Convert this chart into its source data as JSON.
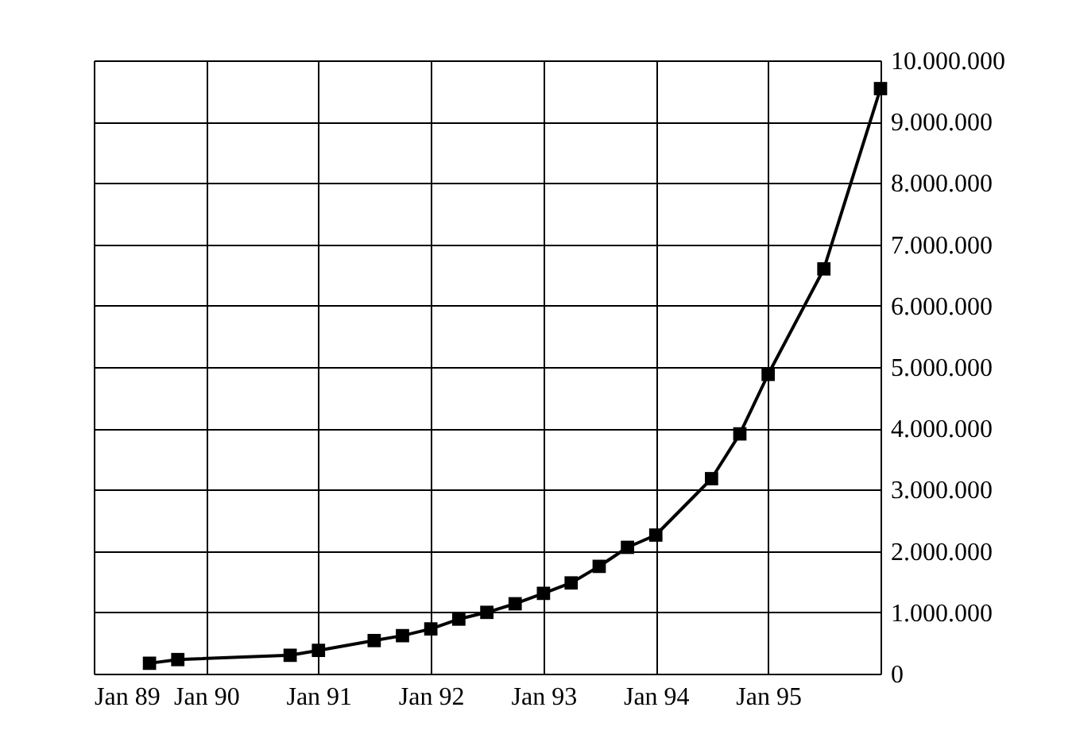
{
  "chart_data": {
    "type": "line",
    "x": [
      "1989-07",
      "1989-10",
      "1990-10",
      "1991-01",
      "1991-07",
      "1991-10",
      "1992-01",
      "1992-04",
      "1992-07",
      "1992-10",
      "1993-01",
      "1993-04",
      "1993-07",
      "1993-10",
      "1994-01",
      "1994-07",
      "1994-10",
      "1995-01",
      "1995-07",
      "1996-01"
    ],
    "series": [
      {
        "color": "#000000",
        "values": [
          170000,
          230000,
          300000,
          380000,
          540000,
          620000,
          730000,
          890000,
          1000000,
          1140000,
          1310000,
          1480000,
          1750000,
          2060000,
          2260000,
          3180000,
          3910000,
          4880000,
          6600000,
          9540000
        ]
      }
    ],
    "xlim": [
      "1989-01",
      "1996-01"
    ],
    "xticks": [
      {
        "value": "1989-01",
        "label": "Jan 89"
      },
      {
        "value": "1990-01",
        "label": "Jan 90"
      },
      {
        "value": "1991-01",
        "label": "Jan 91"
      },
      {
        "value": "1992-01",
        "label": "Jan 92"
      },
      {
        "value": "1993-01",
        "label": "Jan 93"
      },
      {
        "value": "1994-01",
        "label": "Jan 94"
      },
      {
        "value": "1995-01",
        "label": "Jan 95"
      },
      {
        "value": "1996-01",
        "label": null
      }
    ],
    "ylim": [
      0,
      10000000
    ],
    "yticks": [
      0,
      {
        "value": 1000000,
        "label": "1.000.000"
      },
      {
        "value": 2000000,
        "label": "2.000.000"
      },
      {
        "value": 3000000,
        "label": "3.000.000"
      },
      {
        "value": 4000000,
        "label": "4.000.000"
      },
      {
        "value": 5000000,
        "label": "5.000.000"
      },
      {
        "value": 6000000,
        "label": "6.000.000"
      },
      {
        "value": 7000000,
        "label": "7.000.000"
      },
      {
        "value": 8000000,
        "label": "8.000.000"
      },
      {
        "value": 9000000,
        "label": "9.000.000"
      },
      {
        "value": 10000000,
        "label": "10.000.000"
      }
    ],
    "grid": true,
    "marker": "square",
    "line_style": "solid"
  }
}
